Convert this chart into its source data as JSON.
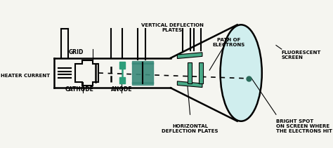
{
  "bg_color": "#f5f5f0",
  "tube_color": "#000000",
  "screen_fill": "#d0eeee",
  "green_color": "#2d9e7a",
  "teal_color": "#3a8a7a",
  "plate_color": "#4aaa88",
  "dot_color": "#2a6a5a",
  "text_color": "#000000",
  "labels": {
    "cathode": "CATHODE",
    "anode": "ANODE",
    "heater": "HEATER CURRENT",
    "grid": "GRID",
    "horiz": "HORIZONTAL\nDEFLECTION PLATES",
    "vert": "VERTICAL DEFLECTION\nPLATES",
    "bright": "BRIGHT SPOT\nON SCREEN WHERE\nTHE ELECTRONS HIT",
    "fluor": "FLUORESCENT\nSCREEN",
    "path": "PATH OF\nELECTRONS"
  }
}
